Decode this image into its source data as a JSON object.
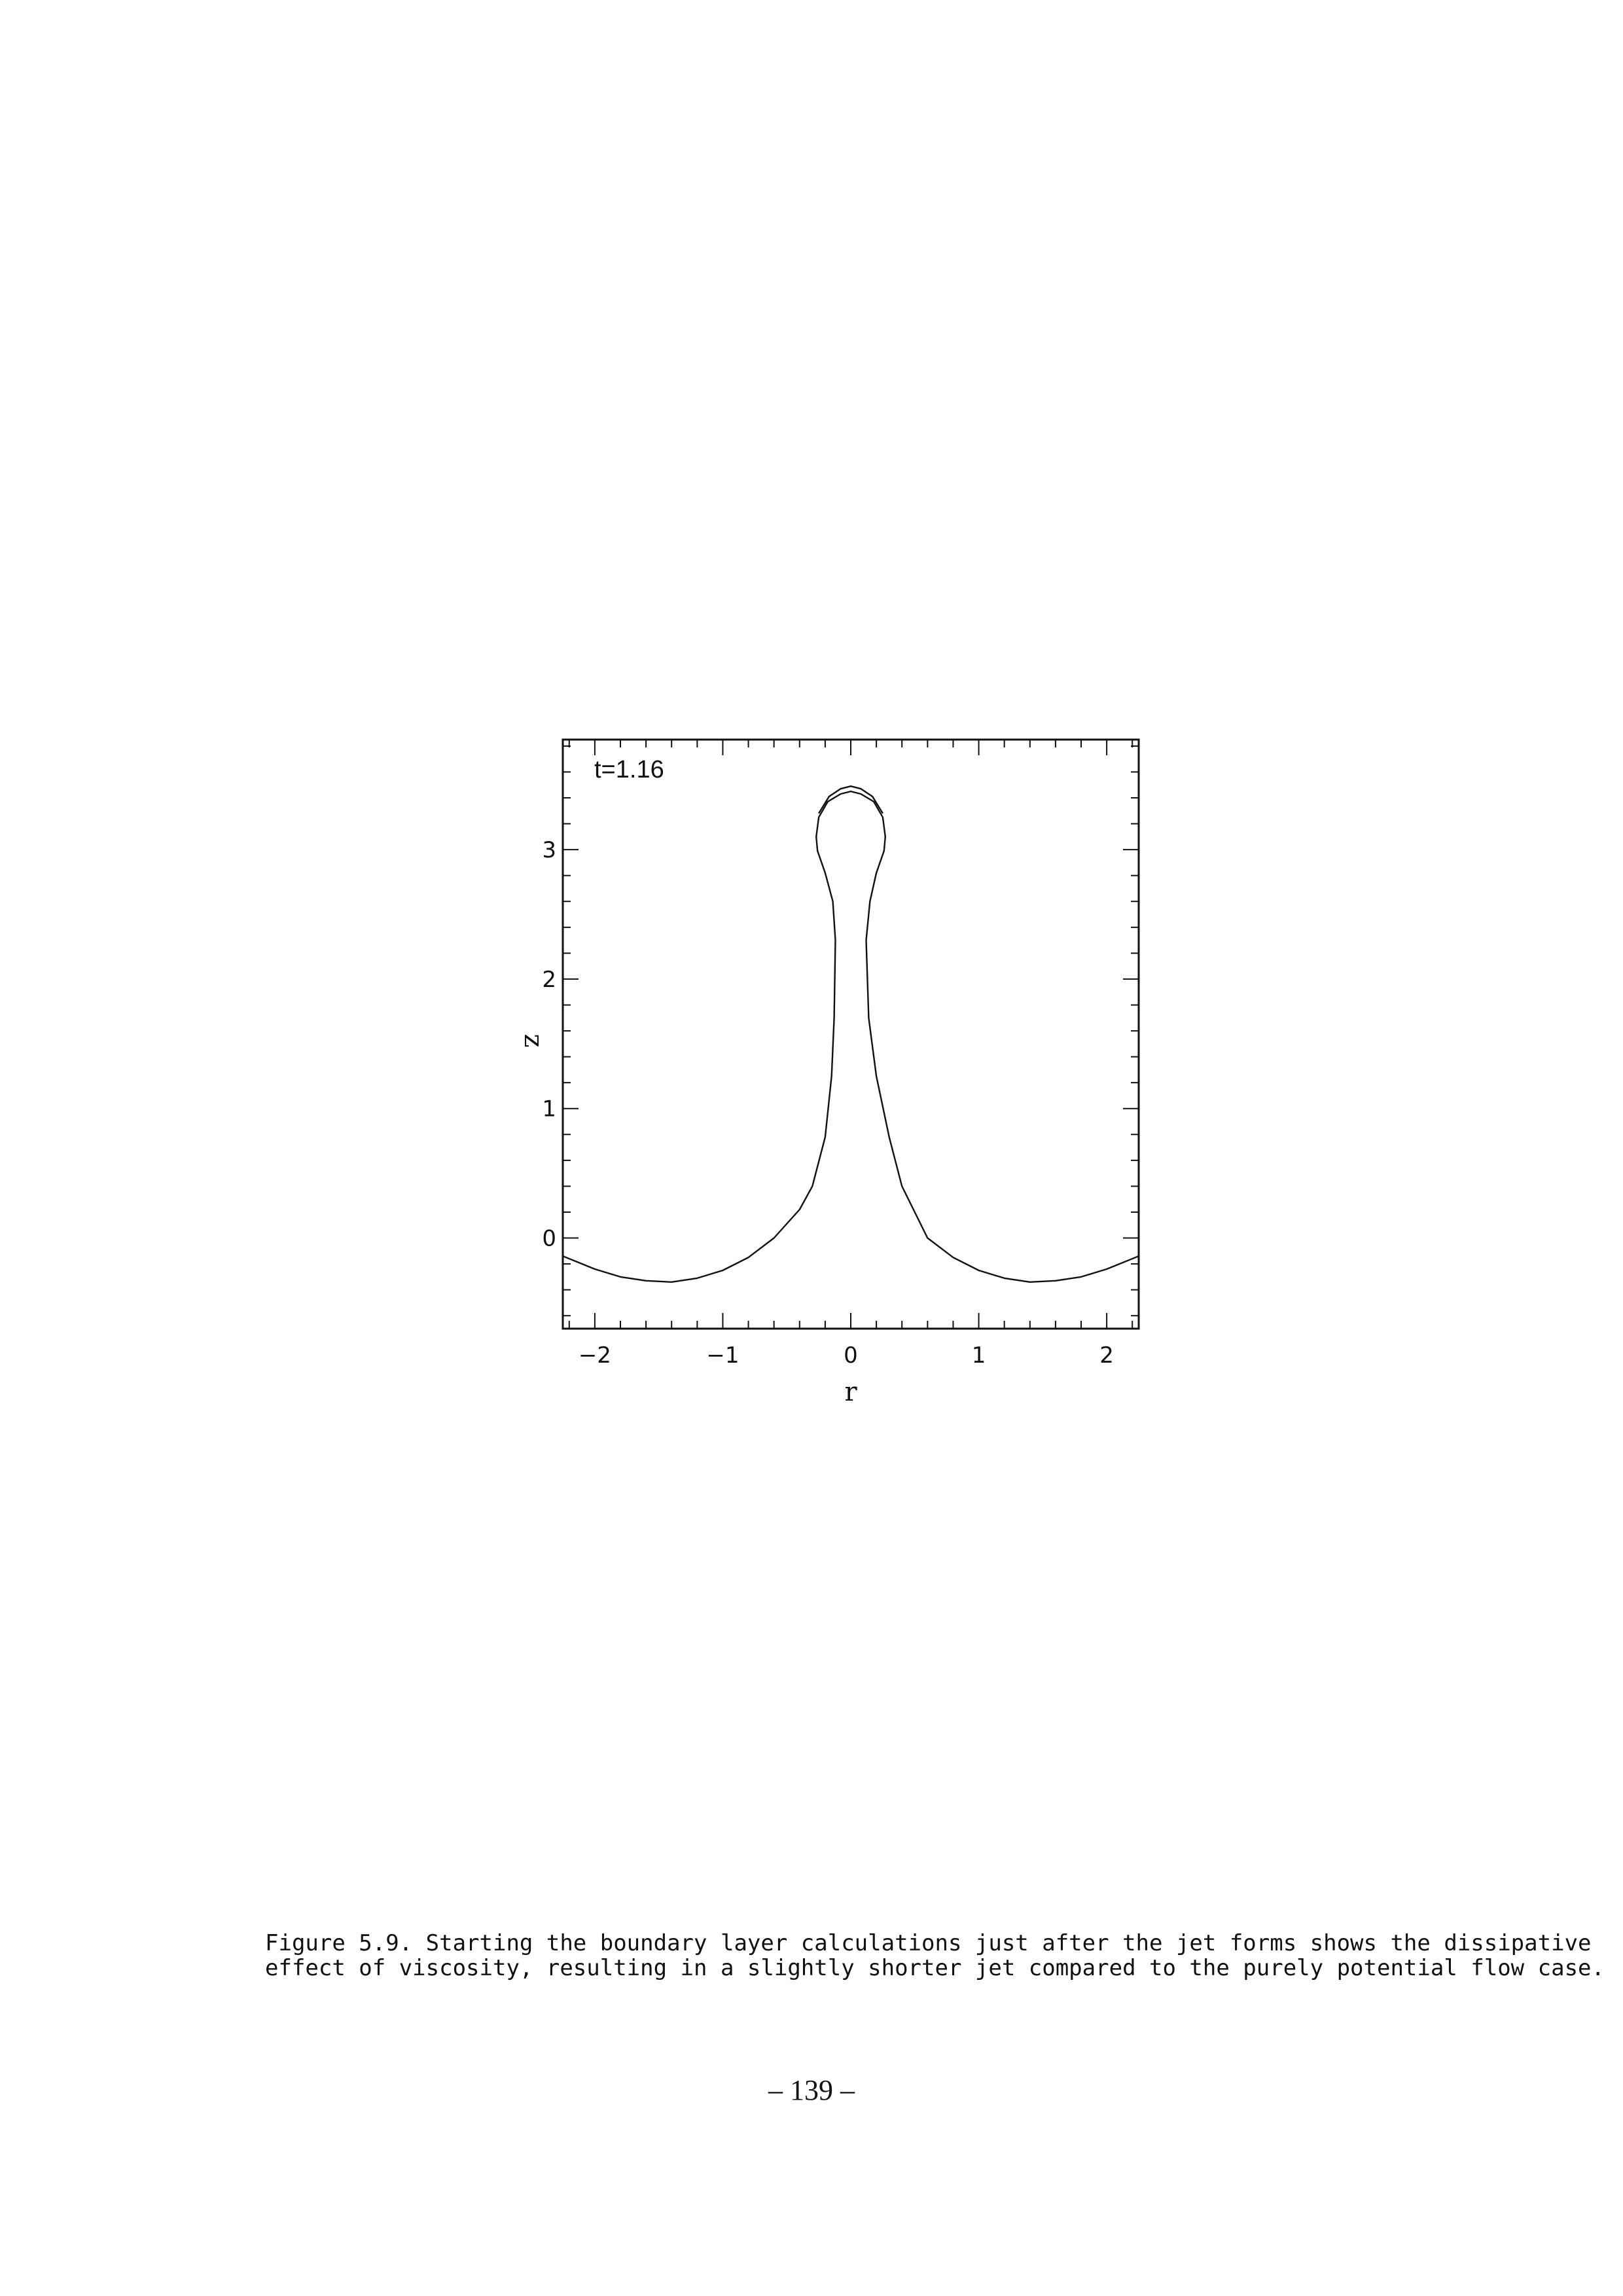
{
  "chart_data": {
    "type": "line",
    "annotation": "t=1.16",
    "xlabel": "r",
    "ylabel": "z",
    "xlim": [
      -2.25,
      2.25
    ],
    "ylim": [
      -0.7,
      3.85
    ],
    "xticks": [
      -2,
      -1,
      0,
      1,
      2
    ],
    "xtick_labels": [
      "−2",
      "−1",
      "0",
      "1",
      "2"
    ],
    "yticks": [
      0,
      1,
      2,
      3
    ],
    "ytick_labels": [
      "0",
      "1",
      "2",
      "3"
    ],
    "grid": false,
    "series": [
      {
        "x": [
          -2.25,
          -2.0,
          -1.8,
          -1.6,
          -1.4,
          -1.2,
          -1.0,
          -0.8,
          -0.6,
          -0.4,
          -0.3,
          -0.2,
          -0.15,
          -0.13,
          -0.12,
          -0.14,
          -0.2,
          -0.26,
          -0.27,
          -0.25,
          -0.18,
          -0.08,
          0.0,
          0.08,
          0.18,
          0.25,
          0.27,
          0.26,
          0.2,
          0.15,
          0.12,
          0.14,
          0.2,
          0.3,
          0.4,
          0.6,
          0.8,
          1.0,
          1.2,
          1.4,
          1.6,
          1.8,
          2.0,
          2.25
        ],
        "y": [
          -0.14,
          -0.24,
          -0.3,
          -0.33,
          -0.34,
          -0.31,
          -0.25,
          -0.15,
          0.0,
          0.22,
          0.4,
          0.78,
          1.25,
          1.7,
          2.3,
          2.6,
          2.82,
          2.99,
          3.1,
          3.25,
          3.37,
          3.43,
          3.45,
          3.43,
          3.37,
          3.25,
          3.1,
          2.99,
          2.82,
          2.6,
          2.3,
          1.7,
          1.25,
          0.78,
          0.4,
          0.0,
          -0.15,
          -0.25,
          -0.31,
          -0.34,
          -0.33,
          -0.3,
          -0.24,
          -0.14
        ]
      },
      {
        "x": [
          -0.25,
          -0.17,
          -0.08,
          0.0,
          0.08,
          0.17,
          0.25
        ],
        "y": [
          3.28,
          3.41,
          3.47,
          3.49,
          3.47,
          3.41,
          3.28
        ]
      }
    ]
  },
  "caption": {
    "line1": "Figure 5.9. Starting the boundary layer calculations just after the jet forms shows the dissipative",
    "line2": "effect of viscosity, resulting in a slightly shorter jet compared to the purely potential flow case."
  },
  "page_number": "– 139 –"
}
